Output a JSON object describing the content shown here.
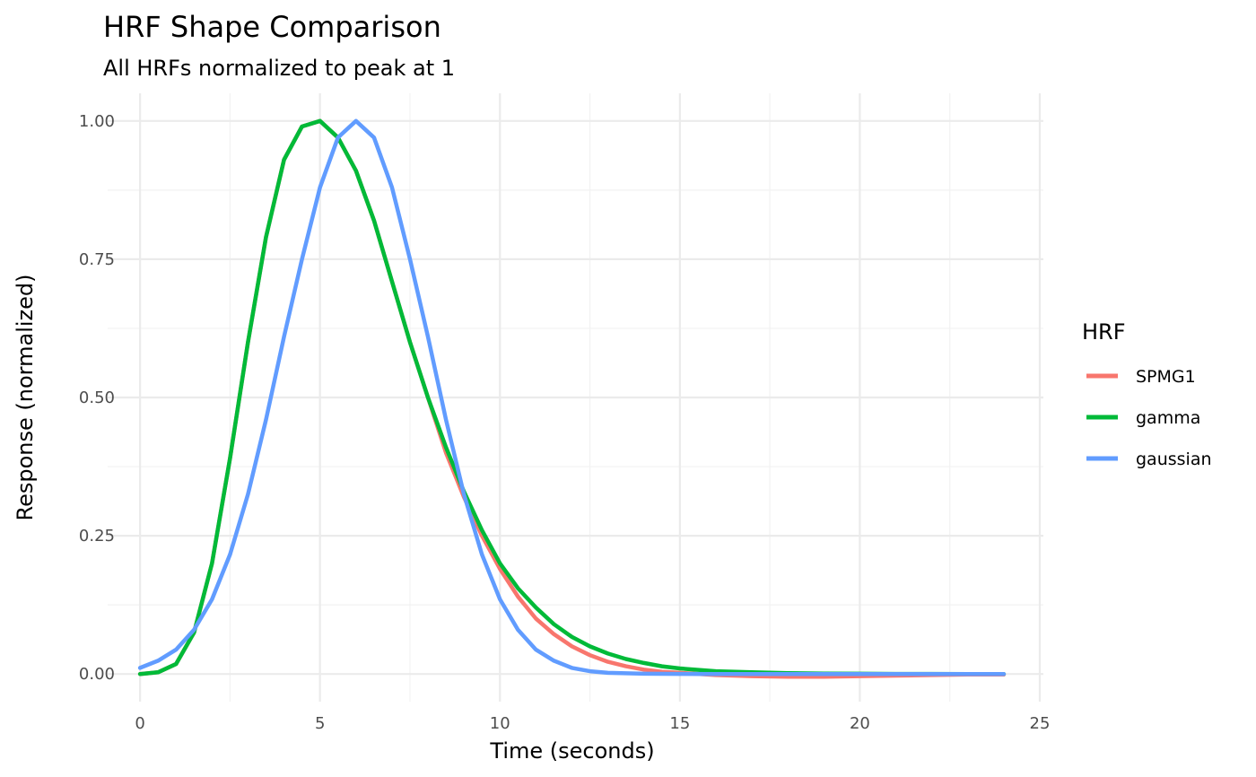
{
  "chart_data": {
    "type": "line",
    "title": "HRF Shape Comparison",
    "subtitle": "All HRFs normalized to peak at 1",
    "xlabel": "Time (seconds)",
    "ylabel": "Response (normalized)",
    "xlim": [
      -0.9,
      25.1
    ],
    "ylim": [
      -0.05,
      1.05
    ],
    "x_ticks": [
      0,
      5,
      10,
      15,
      20,
      25
    ],
    "x_tick_labels": [
      "0",
      "5",
      "10",
      "15",
      "20",
      "25"
    ],
    "y_ticks": [
      0,
      0.25,
      0.5,
      0.75,
      1
    ],
    "y_tick_labels": [
      "0.00",
      "0.25",
      "0.50",
      "0.75",
      "1.00"
    ],
    "grid": true,
    "legend": {
      "title": "HRF",
      "position": "right"
    },
    "series": [
      {
        "name": "SPMG1",
        "color": "#F8766D",
        "x": [
          0,
          0.5,
          1,
          1.5,
          2,
          2.5,
          3,
          3.5,
          4,
          4.5,
          5,
          5.5,
          6,
          6.5,
          7,
          7.5,
          8,
          8.5,
          9,
          9.5,
          10,
          10.5,
          11,
          11.5,
          12,
          12.5,
          13,
          13.5,
          14,
          14.5,
          15,
          16,
          17,
          18,
          19,
          20,
          21,
          22,
          23,
          24
        ],
        "y": [
          0,
          0.003,
          0.018,
          0.075,
          0.2,
          0.39,
          0.6,
          0.79,
          0.93,
          0.99,
          1.0,
          0.97,
          0.91,
          0.82,
          0.71,
          0.6,
          0.5,
          0.4,
          0.32,
          0.25,
          0.19,
          0.14,
          0.1,
          0.072,
          0.05,
          0.034,
          0.022,
          0.014,
          0.008,
          0.004,
          0.002,
          -0.002,
          -0.004,
          -0.005,
          -0.005,
          -0.004,
          -0.003,
          -0.002,
          -0.001,
          -0.001
        ]
      },
      {
        "name": "gamma",
        "color": "#00BA38",
        "x": [
          0,
          0.5,
          1,
          1.5,
          2,
          2.5,
          3,
          3.5,
          4,
          4.5,
          5,
          5.5,
          6,
          6.5,
          7,
          7.5,
          8,
          8.5,
          9,
          9.5,
          10,
          10.5,
          11,
          11.5,
          12,
          12.5,
          13,
          13.5,
          14,
          14.5,
          15,
          16,
          17,
          18,
          19,
          20,
          21,
          22,
          23,
          24
        ],
        "y": [
          0,
          0.003,
          0.018,
          0.075,
          0.2,
          0.39,
          0.6,
          0.79,
          0.93,
          0.99,
          1.0,
          0.97,
          0.91,
          0.82,
          0.71,
          0.6,
          0.5,
          0.41,
          0.33,
          0.26,
          0.2,
          0.155,
          0.12,
          0.09,
          0.067,
          0.05,
          0.037,
          0.027,
          0.02,
          0.014,
          0.01,
          0.005,
          0.003,
          0.0015,
          0.0008,
          0.0004,
          0.0002,
          0.0001,
          0,
          0
        ]
      },
      {
        "name": "gaussian",
        "color": "#619CFF",
        "x": [
          0,
          0.5,
          1,
          1.5,
          2,
          2.5,
          3,
          3.5,
          4,
          4.5,
          5,
          5.5,
          6,
          6.5,
          7,
          7.5,
          8,
          8.5,
          9,
          9.5,
          10,
          10.5,
          11,
          11.5,
          12,
          12.5,
          13,
          14,
          15,
          16,
          17,
          18,
          19,
          20,
          21,
          22,
          23,
          24
        ],
        "y": [
          0.011,
          0.024,
          0.044,
          0.08,
          0.135,
          0.216,
          0.325,
          0.46,
          0.61,
          0.75,
          0.88,
          0.97,
          1.0,
          0.97,
          0.88,
          0.75,
          0.61,
          0.46,
          0.325,
          0.216,
          0.135,
          0.08,
          0.044,
          0.024,
          0.011,
          0.005,
          0.002,
          0.0004,
          0.0001,
          0,
          0,
          0,
          0,
          0,
          0,
          0,
          0,
          0
        ]
      }
    ]
  }
}
